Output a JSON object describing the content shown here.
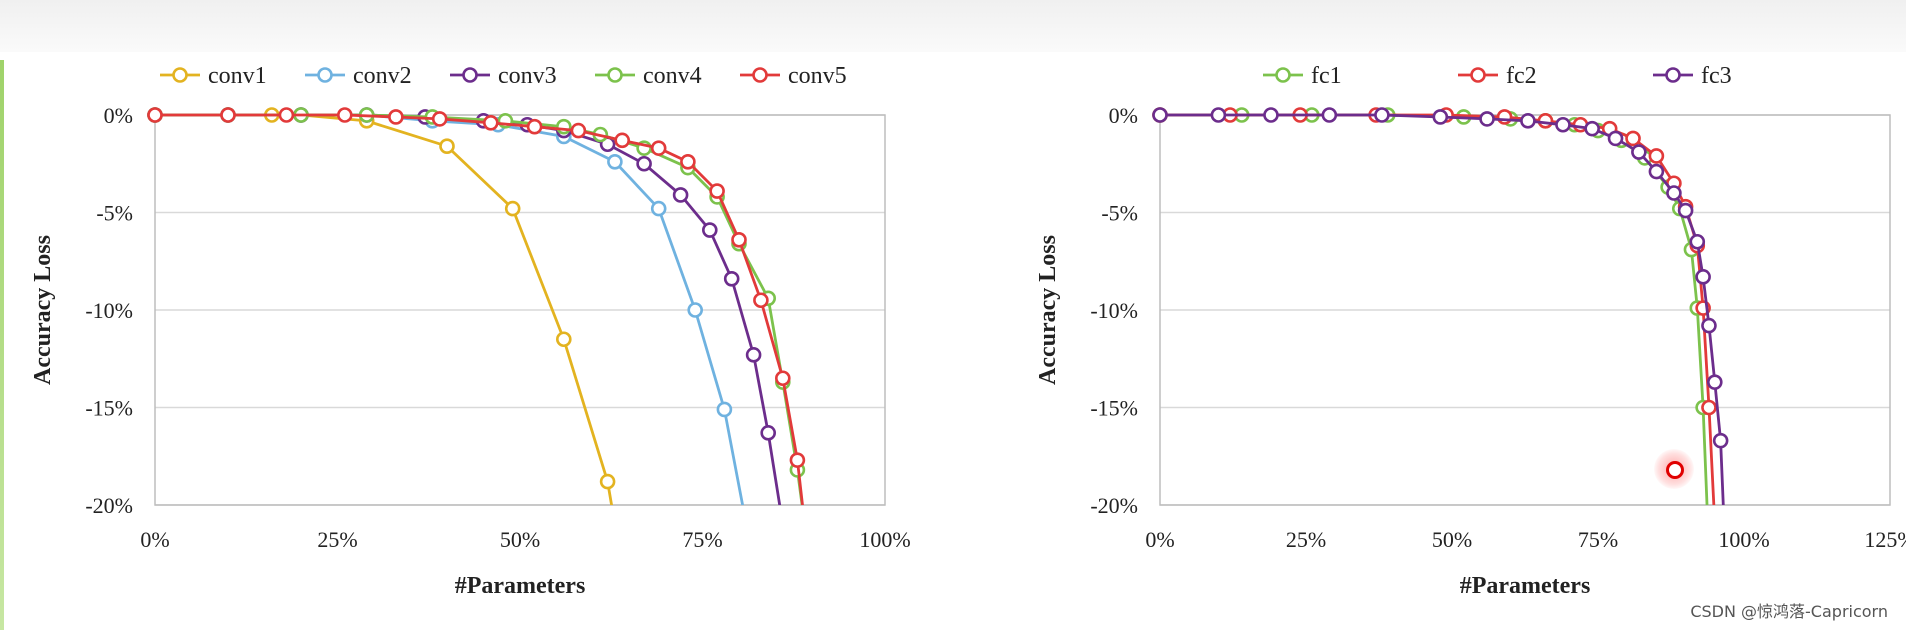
{
  "watermark": "CSDN @惊鸿落-Capricorn",
  "colors": {
    "conv1": "#e3b320",
    "conv2": "#6fb2e0",
    "conv3": "#6c2d8c",
    "conv4": "#7cc24c",
    "conv5": "#e23a3a",
    "fc1": "#7cc24c",
    "fc2": "#e23a3a",
    "fc3": "#6c2d8c",
    "grid": "#d9d9d9",
    "axis_text": "#222222"
  },
  "chart_data": [
    {
      "type": "line",
      "xlabel": "#Parameters",
      "ylabel": "Accuracy Loss",
      "xlim": [
        0,
        100
      ],
      "ylim": [
        -20,
        0
      ],
      "x_ticks": [
        "0%",
        "25%",
        "50%",
        "75%",
        "100%"
      ],
      "y_ticks": [
        "0%",
        "-5%",
        "-10%",
        "-15%",
        "-20%"
      ],
      "grid": "horizontal",
      "legend": "top",
      "series": [
        {
          "name": "conv1",
          "color": "#e3b320",
          "points": [
            [
              0,
              0
            ],
            [
              10,
              0
            ],
            [
              16,
              0
            ],
            [
              20,
              0
            ],
            [
              29,
              -0.3
            ],
            [
              40,
              -1.6
            ],
            [
              49,
              -4.8
            ],
            [
              56,
              -11.5
            ],
            [
              62,
              -18.8
            ],
            [
              63,
              -21
            ]
          ]
        },
        {
          "name": "conv2",
          "color": "#6fb2e0",
          "points": [
            [
              0,
              0
            ],
            [
              10,
              0
            ],
            [
              20,
              0
            ],
            [
              29,
              0
            ],
            [
              38,
              -0.3
            ],
            [
              47,
              -0.5
            ],
            [
              56,
              -1.1
            ],
            [
              63,
              -2.4
            ],
            [
              69,
              -4.8
            ],
            [
              74,
              -10
            ],
            [
              78,
              -15.1
            ],
            [
              81,
              -21
            ]
          ]
        },
        {
          "name": "conv3",
          "color": "#6c2d8c",
          "points": [
            [
              0,
              0
            ],
            [
              10,
              0
            ],
            [
              20,
              0
            ],
            [
              29,
              0
            ],
            [
              37,
              -0.1
            ],
            [
              45,
              -0.3
            ],
            [
              51,
              -0.5
            ],
            [
              56,
              -0.8
            ],
            [
              62,
              -1.5
            ],
            [
              67,
              -2.5
            ],
            [
              72,
              -4.1
            ],
            [
              76,
              -5.9
            ],
            [
              79,
              -8.4
            ],
            [
              82,
              -12.3
            ],
            [
              84,
              -16.3
            ],
            [
              86,
              -21
            ]
          ]
        },
        {
          "name": "conv4",
          "color": "#7cc24c",
          "points": [
            [
              0,
              0
            ],
            [
              10,
              0
            ],
            [
              20,
              0
            ],
            [
              29,
              0
            ],
            [
              38,
              -0.1
            ],
            [
              48,
              -0.3
            ],
            [
              56,
              -0.6
            ],
            [
              61,
              -1
            ],
            [
              67,
              -1.7
            ],
            [
              73,
              -2.7
            ],
            [
              77,
              -4.2
            ],
            [
              80,
              -6.6
            ],
            [
              84,
              -9.4
            ],
            [
              86,
              -13.7
            ],
            [
              88,
              -18.2
            ],
            [
              89,
              -21
            ]
          ]
        },
        {
          "name": "conv5",
          "color": "#e23a3a",
          "points": [
            [
              0,
              0
            ],
            [
              10,
              0
            ],
            [
              18,
              0
            ],
            [
              26,
              0
            ],
            [
              33,
              -0.1
            ],
            [
              39,
              -0.2
            ],
            [
              46,
              -0.4
            ],
            [
              52,
              -0.6
            ],
            [
              58,
              -0.8
            ],
            [
              64,
              -1.3
            ],
            [
              69,
              -1.7
            ],
            [
              73,
              -2.4
            ],
            [
              77,
              -3.9
            ],
            [
              80,
              -6.4
            ],
            [
              83,
              -9.5
            ],
            [
              86,
              -13.5
            ],
            [
              88,
              -17.7
            ],
            [
              89,
              -21
            ]
          ]
        }
      ]
    },
    {
      "type": "line",
      "xlabel": "#Parameters",
      "ylabel": "Accuracy Loss",
      "xlim": [
        0,
        125
      ],
      "ylim": [
        -20,
        0
      ],
      "x_ticks": [
        "0%",
        "25%",
        "50%",
        "75%",
        "100%",
        "125%"
      ],
      "y_ticks": [
        "0%",
        "-5%",
        "-10%",
        "-15%",
        "-20%"
      ],
      "grid": "horizontal",
      "legend": "top",
      "series": [
        {
          "name": "fc1",
          "color": "#7cc24c",
          "points": [
            [
              0,
              0
            ],
            [
              14,
              0
            ],
            [
              26,
              0
            ],
            [
              39,
              0
            ],
            [
              52,
              -0.1
            ],
            [
              60,
              -0.2
            ],
            [
              66,
              -0.3
            ],
            [
              71,
              -0.5
            ],
            [
              75,
              -0.8
            ],
            [
              79,
              -1.3
            ],
            [
              83,
              -2.2
            ],
            [
              87,
              -3.7
            ],
            [
              89,
              -4.8
            ],
            [
              91,
              -6.9
            ],
            [
              92,
              -9.9
            ],
            [
              93,
              -15
            ],
            [
              93.8,
              -21
            ]
          ]
        },
        {
          "name": "fc2",
          "color": "#e23a3a",
          "points": [
            [
              0,
              0
            ],
            [
              12,
              0
            ],
            [
              24,
              0
            ],
            [
              37,
              0
            ],
            [
              49,
              0
            ],
            [
              59,
              -0.1
            ],
            [
              66,
              -0.3
            ],
            [
              72,
              -0.5
            ],
            [
              77,
              -0.7
            ],
            [
              81,
              -1.2
            ],
            [
              85,
              -2.1
            ],
            [
              88,
              -3.5
            ],
            [
              90,
              -4.7
            ],
            [
              92,
              -6.7
            ],
            [
              93,
              -9.9
            ],
            [
              94,
              -15
            ],
            [
              95,
              -21
            ]
          ]
        },
        {
          "name": "fc3",
          "color": "#6c2d8c",
          "points": [
            [
              0,
              0
            ],
            [
              10,
              0
            ],
            [
              19,
              0
            ],
            [
              29,
              0
            ],
            [
              38,
              0
            ],
            [
              48,
              -0.1
            ],
            [
              56,
              -0.2
            ],
            [
              63,
              -0.3
            ],
            [
              69,
              -0.5
            ],
            [
              74,
              -0.7
            ],
            [
              78,
              -1.2
            ],
            [
              82,
              -1.9
            ],
            [
              85,
              -2.9
            ],
            [
              88,
              -4
            ],
            [
              90,
              -4.9
            ],
            [
              92,
              -6.5
            ],
            [
              93,
              -8.3
            ],
            [
              94,
              -10.8
            ],
            [
              95,
              -13.7
            ],
            [
              96,
              -16.7
            ],
            [
              96.6,
              -21
            ]
          ]
        }
      ]
    }
  ]
}
